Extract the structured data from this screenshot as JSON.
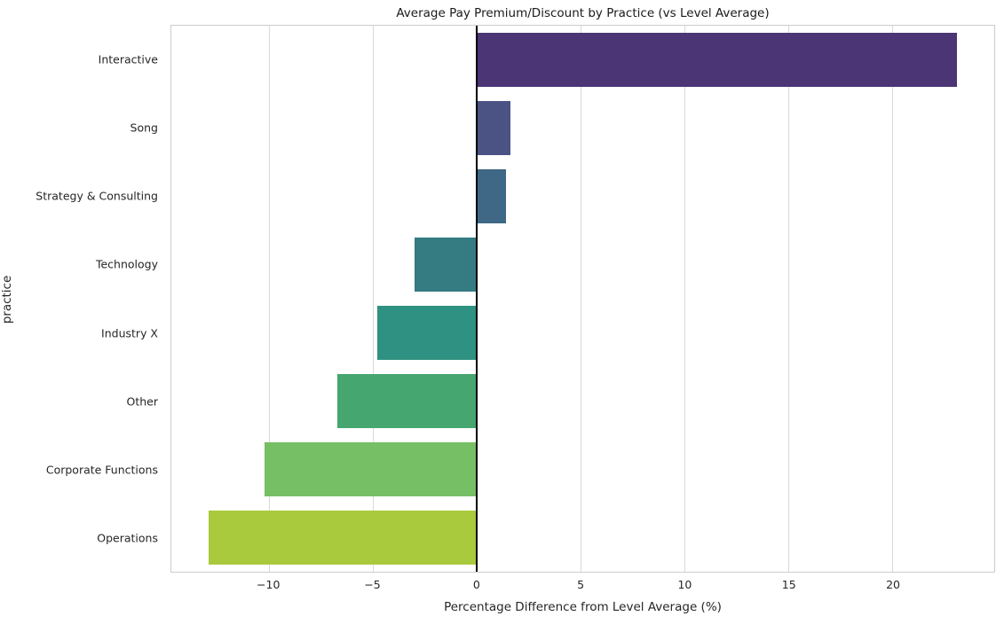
{
  "chart_data": {
    "type": "bar",
    "orientation": "horizontal",
    "title": "Average Pay Premium/Discount by Practice (vs Level Average)",
    "xlabel": "Percentage Difference from Level Average (%)",
    "ylabel": "practice",
    "categories": [
      "Interactive",
      "Song",
      "Strategy & Consulting",
      "Technology",
      "Industry X",
      "Other",
      "Corporate Functions",
      "Operations"
    ],
    "values": [
      23.1,
      1.6,
      1.4,
      -3.0,
      -4.8,
      -6.7,
      -10.2,
      -12.9
    ],
    "bar_colors": [
      "#4b3575",
      "#4a5384",
      "#3e6885",
      "#347b82",
      "#2f9181",
      "#45a66f",
      "#76bf64",
      "#aaca3d"
    ],
    "xlim": [
      -14.7,
      24.9
    ],
    "xticks": [
      -10,
      -5,
      0,
      5,
      10,
      15,
      20
    ],
    "xtick_labels": [
      "−10",
      "−5",
      "0",
      "5",
      "10",
      "15",
      "20"
    ],
    "bar_width_fraction": 0.8,
    "grid": true,
    "legend": false,
    "zero_line": true
  },
  "styles": {
    "background": "#ffffff",
    "grid_color": "#d9d9d9",
    "spine_color": "#cccccc",
    "zero_line_color": "#000000",
    "text_color": "#262626"
  }
}
